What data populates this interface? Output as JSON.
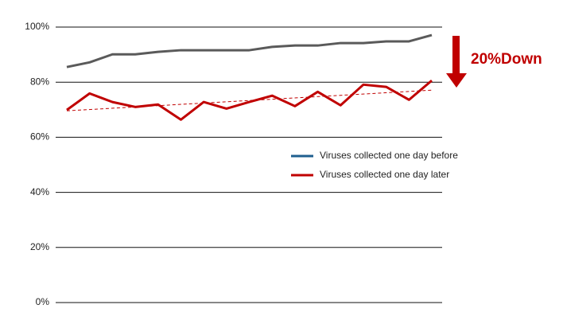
{
  "chart_data": {
    "type": "line",
    "categories": [
      null,
      null,
      null,
      null,
      null,
      null,
      null,
      null,
      null,
      null,
      null,
      null,
      null,
      null,
      null,
      null,
      null
    ],
    "series": [
      {
        "name": "Viruses collected one day before",
        "color": "#5a5a5a",
        "legend_color": "#1f5f8f",
        "values": [
          85.5,
          87.2,
          90.1,
          90.1,
          91.0,
          91.6,
          91.6,
          91.6,
          91.6,
          92.8,
          93.3,
          93.3,
          94.2,
          94.2,
          94.8,
          94.8,
          97.1
        ]
      },
      {
        "name": "Viruses collected one day later",
        "color": "#c00000",
        "legend_color": "#c00000",
        "values": [
          69.9,
          75.9,
          72.8,
          71.0,
          71.9,
          66.4,
          72.8,
          70.4,
          72.8,
          75.1,
          71.3,
          76.5,
          71.6,
          79.1,
          78.3,
          73.6,
          80.6
        ]
      }
    ],
    "trendline": {
      "color": "#c00000",
      "values": [
        69.6,
        77.1
      ]
    },
    "annotation": {
      "text": "20%Down",
      "color": "#c00000"
    },
    "ylim": [
      0,
      100
    ],
    "yticks": [
      {
        "value": 0,
        "label": "0%"
      },
      {
        "value": 20,
        "label": "20%"
      },
      {
        "value": 40,
        "label": "40%"
      },
      {
        "value": 60,
        "label": "60%"
      },
      {
        "value": 80,
        "label": "80%"
      },
      {
        "value": 100,
        "label": "100%"
      }
    ],
    "grid": true
  }
}
